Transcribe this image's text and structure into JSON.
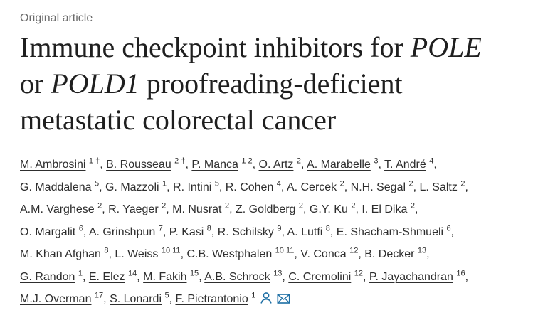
{
  "article_type": "Original article",
  "title": {
    "line1_a": "Immune checkpoint inhibitors for ",
    "line1_b": "POLE",
    "line2_a": "or ",
    "line2_b": "POLD1",
    "line2_c": " proofreading-deficient",
    "line3": "metastatic colorectal cancer"
  },
  "author_lines": [
    [
      {
        "name": "M. Ambrosini",
        "sup": "1 †"
      },
      {
        "name": "B. Rousseau",
        "sup": "2 †"
      },
      {
        "name": "P. Manca",
        "sup": "1 2"
      },
      {
        "name": "O. Artz",
        "sup": "2"
      },
      {
        "name": "A. Marabelle",
        "sup": "3"
      },
      {
        "name": "T. André",
        "sup": "4"
      }
    ],
    [
      {
        "name": "G. Maddalena",
        "sup": "5"
      },
      {
        "name": "G. Mazzoli",
        "sup": "1"
      },
      {
        "name": "R. Intini",
        "sup": "5"
      },
      {
        "name": "R. Cohen",
        "sup": "4"
      },
      {
        "name": "A. Cercek",
        "sup": "2"
      },
      {
        "name": "N.H. Segal",
        "sup": "2"
      },
      {
        "name": "L. Saltz",
        "sup": "2"
      }
    ],
    [
      {
        "name": "A.M. Varghese",
        "sup": "2"
      },
      {
        "name": "R. Yaeger",
        "sup": "2"
      },
      {
        "name": "M. Nusrat",
        "sup": "2"
      },
      {
        "name": "Z. Goldberg",
        "sup": "2"
      },
      {
        "name": "G.Y. Ku",
        "sup": "2"
      },
      {
        "name": "I. El Dika",
        "sup": "2"
      }
    ],
    [
      {
        "name": "O. Margalit",
        "sup": "6"
      },
      {
        "name": "A. Grinshpun",
        "sup": "7"
      },
      {
        "name": "P. Kasi",
        "sup": "8"
      },
      {
        "name": "R. Schilsky",
        "sup": "9"
      },
      {
        "name": "A. Lutfi",
        "sup": "8"
      },
      {
        "name": "E. Shacham-Shmueli",
        "sup": "6"
      }
    ],
    [
      {
        "name": "M. Khan Afghan",
        "sup": "8"
      },
      {
        "name": "L. Weiss",
        "sup": "10 11"
      },
      {
        "name": "C.B. Westphalen",
        "sup": "10 11"
      },
      {
        "name": "V. Conca",
        "sup": "12"
      },
      {
        "name": "B. Decker",
        "sup": "13"
      }
    ],
    [
      {
        "name": "G. Randon",
        "sup": "1"
      },
      {
        "name": "E. Elez",
        "sup": "14"
      },
      {
        "name": "M. Fakih",
        "sup": "15"
      },
      {
        "name": "A.B. Schrock",
        "sup": "13"
      },
      {
        "name": "C. Cremolini",
        "sup": "12"
      },
      {
        "name": "P. Jayachandran",
        "sup": "16"
      }
    ],
    [
      {
        "name": "M.J. Overman",
        "sup": "17"
      },
      {
        "name": "S. Lonardi",
        "sup": "5"
      },
      {
        "name": "F. Pietrantonio",
        "sup": "1"
      }
    ]
  ],
  "separator": ", ",
  "icons": {
    "person": "person-icon",
    "envelope": "envelope-icon",
    "accent_color": "#1c6ea4"
  }
}
